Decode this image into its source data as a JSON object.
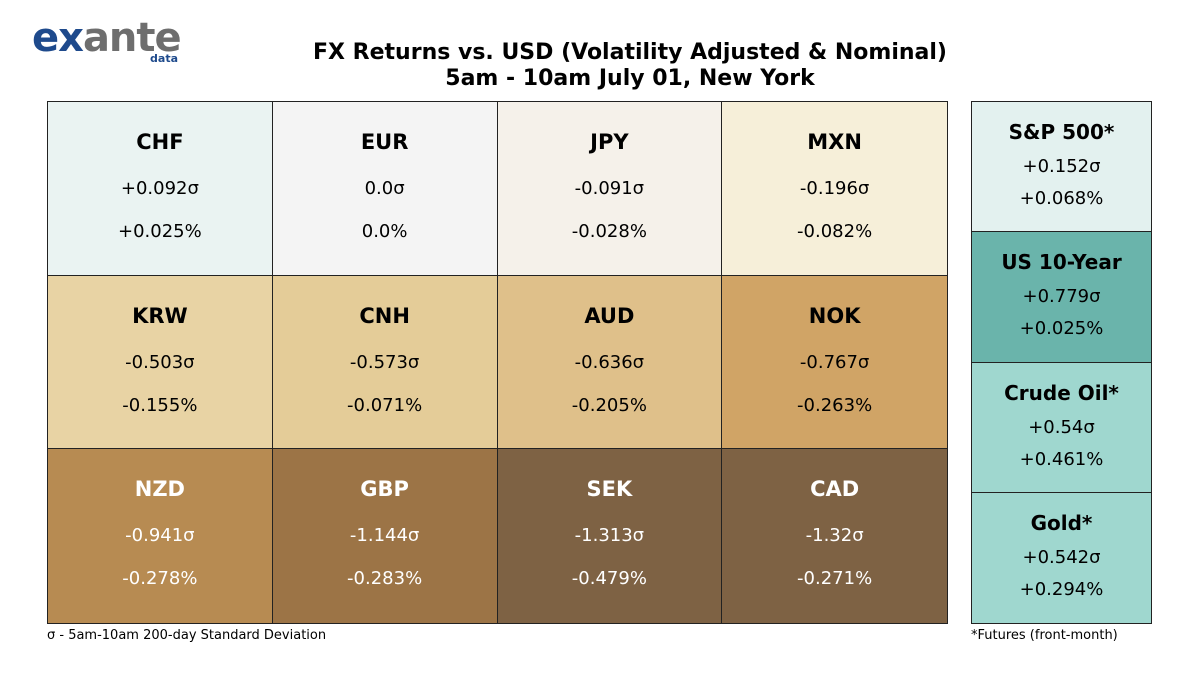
{
  "logo": {
    "main_a": "ex",
    "main_b": "ante",
    "sub": "data"
  },
  "title_line1": "FX Returns vs. USD (Volatility Adjusted & Nominal)",
  "title_line2": "5am - 10am July 01, New York",
  "footnote_left": "σ - 5am-10am 200-day Standard Deviation",
  "footnote_right": "*Futures (front-month)",
  "chart_data": {
    "type": "heatmap",
    "title": "FX Returns vs. USD (Volatility Adjusted & Nominal)",
    "subtitle": "5am - 10am July 01, New York",
    "currencies": [
      {
        "name": "CHF",
        "sigma": 0.092,
        "sigma_label": "+0.092σ",
        "pct": 0.025,
        "pct_label": "+0.025%",
        "color": "#eaf3f2",
        "text_color": "#000000"
      },
      {
        "name": "EUR",
        "sigma": 0.0,
        "sigma_label": "0.0σ",
        "pct": 0.0,
        "pct_label": "0.0%",
        "color": "#f4f4f4",
        "text_color": "#000000"
      },
      {
        "name": "JPY",
        "sigma": -0.091,
        "sigma_label": "-0.091σ",
        "pct": -0.028,
        "pct_label": "-0.028%",
        "color": "#f5f1ea",
        "text_color": "#000000"
      },
      {
        "name": "MXN",
        "sigma": -0.196,
        "sigma_label": "-0.196σ",
        "pct": -0.082,
        "pct_label": "-0.082%",
        "color": "#f6efd9",
        "text_color": "#000000"
      },
      {
        "name": "KRW",
        "sigma": -0.503,
        "sigma_label": "-0.503σ",
        "pct": -0.155,
        "pct_label": "-0.155%",
        "color": "#e8d3a4",
        "text_color": "#000000"
      },
      {
        "name": "CNH",
        "sigma": -0.573,
        "sigma_label": "-0.573σ",
        "pct": -0.071,
        "pct_label": "-0.071%",
        "color": "#e4cc98",
        "text_color": "#000000"
      },
      {
        "name": "AUD",
        "sigma": -0.636,
        "sigma_label": "-0.636σ",
        "pct": -0.205,
        "pct_label": "-0.205%",
        "color": "#dfc08a",
        "text_color": "#000000"
      },
      {
        "name": "NOK",
        "sigma": -0.767,
        "sigma_label": "-0.767σ",
        "pct": -0.263,
        "pct_label": "-0.263%",
        "color": "#d0a466",
        "text_color": "#000000"
      },
      {
        "name": "NZD",
        "sigma": -0.941,
        "sigma_label": "-0.941σ",
        "pct": -0.278,
        "pct_label": "-0.278%",
        "color": "#b78b52",
        "text_color": "#ffffff"
      },
      {
        "name": "GBP",
        "sigma": -1.144,
        "sigma_label": "-1.144σ",
        "pct": -0.283,
        "pct_label": "-0.283%",
        "color": "#9c7446",
        "text_color": "#ffffff"
      },
      {
        "name": "SEK",
        "sigma": -1.313,
        "sigma_label": "-1.313σ",
        "pct": -0.479,
        "pct_label": "-0.479%",
        "color": "#7e6244",
        "text_color": "#ffffff"
      },
      {
        "name": "CAD",
        "sigma": -1.32,
        "sigma_label": "-1.32σ",
        "pct": -0.271,
        "pct_label": "-0.271%",
        "color": "#7e6244",
        "text_color": "#ffffff"
      }
    ],
    "assets": [
      {
        "name": "S&P 500*",
        "sigma": 0.152,
        "sigma_label": "+0.152σ",
        "pct": 0.068,
        "pct_label": "+0.068%",
        "color": "#e3f1ef"
      },
      {
        "name": "US 10-Year",
        "sigma": 0.779,
        "sigma_label": "+0.779σ",
        "pct": 0.025,
        "pct_label": "+0.025%",
        "color": "#6ab4ab"
      },
      {
        "name": "Crude Oil*",
        "sigma": 0.54,
        "sigma_label": "+0.54σ",
        "pct": 0.461,
        "pct_label": "+0.461%",
        "color": "#9fd7cf"
      },
      {
        "name": "Gold*",
        "sigma": 0.542,
        "sigma_label": "+0.542σ",
        "pct": 0.294,
        "pct_label": "+0.294%",
        "color": "#9fd7cf"
      }
    ]
  }
}
